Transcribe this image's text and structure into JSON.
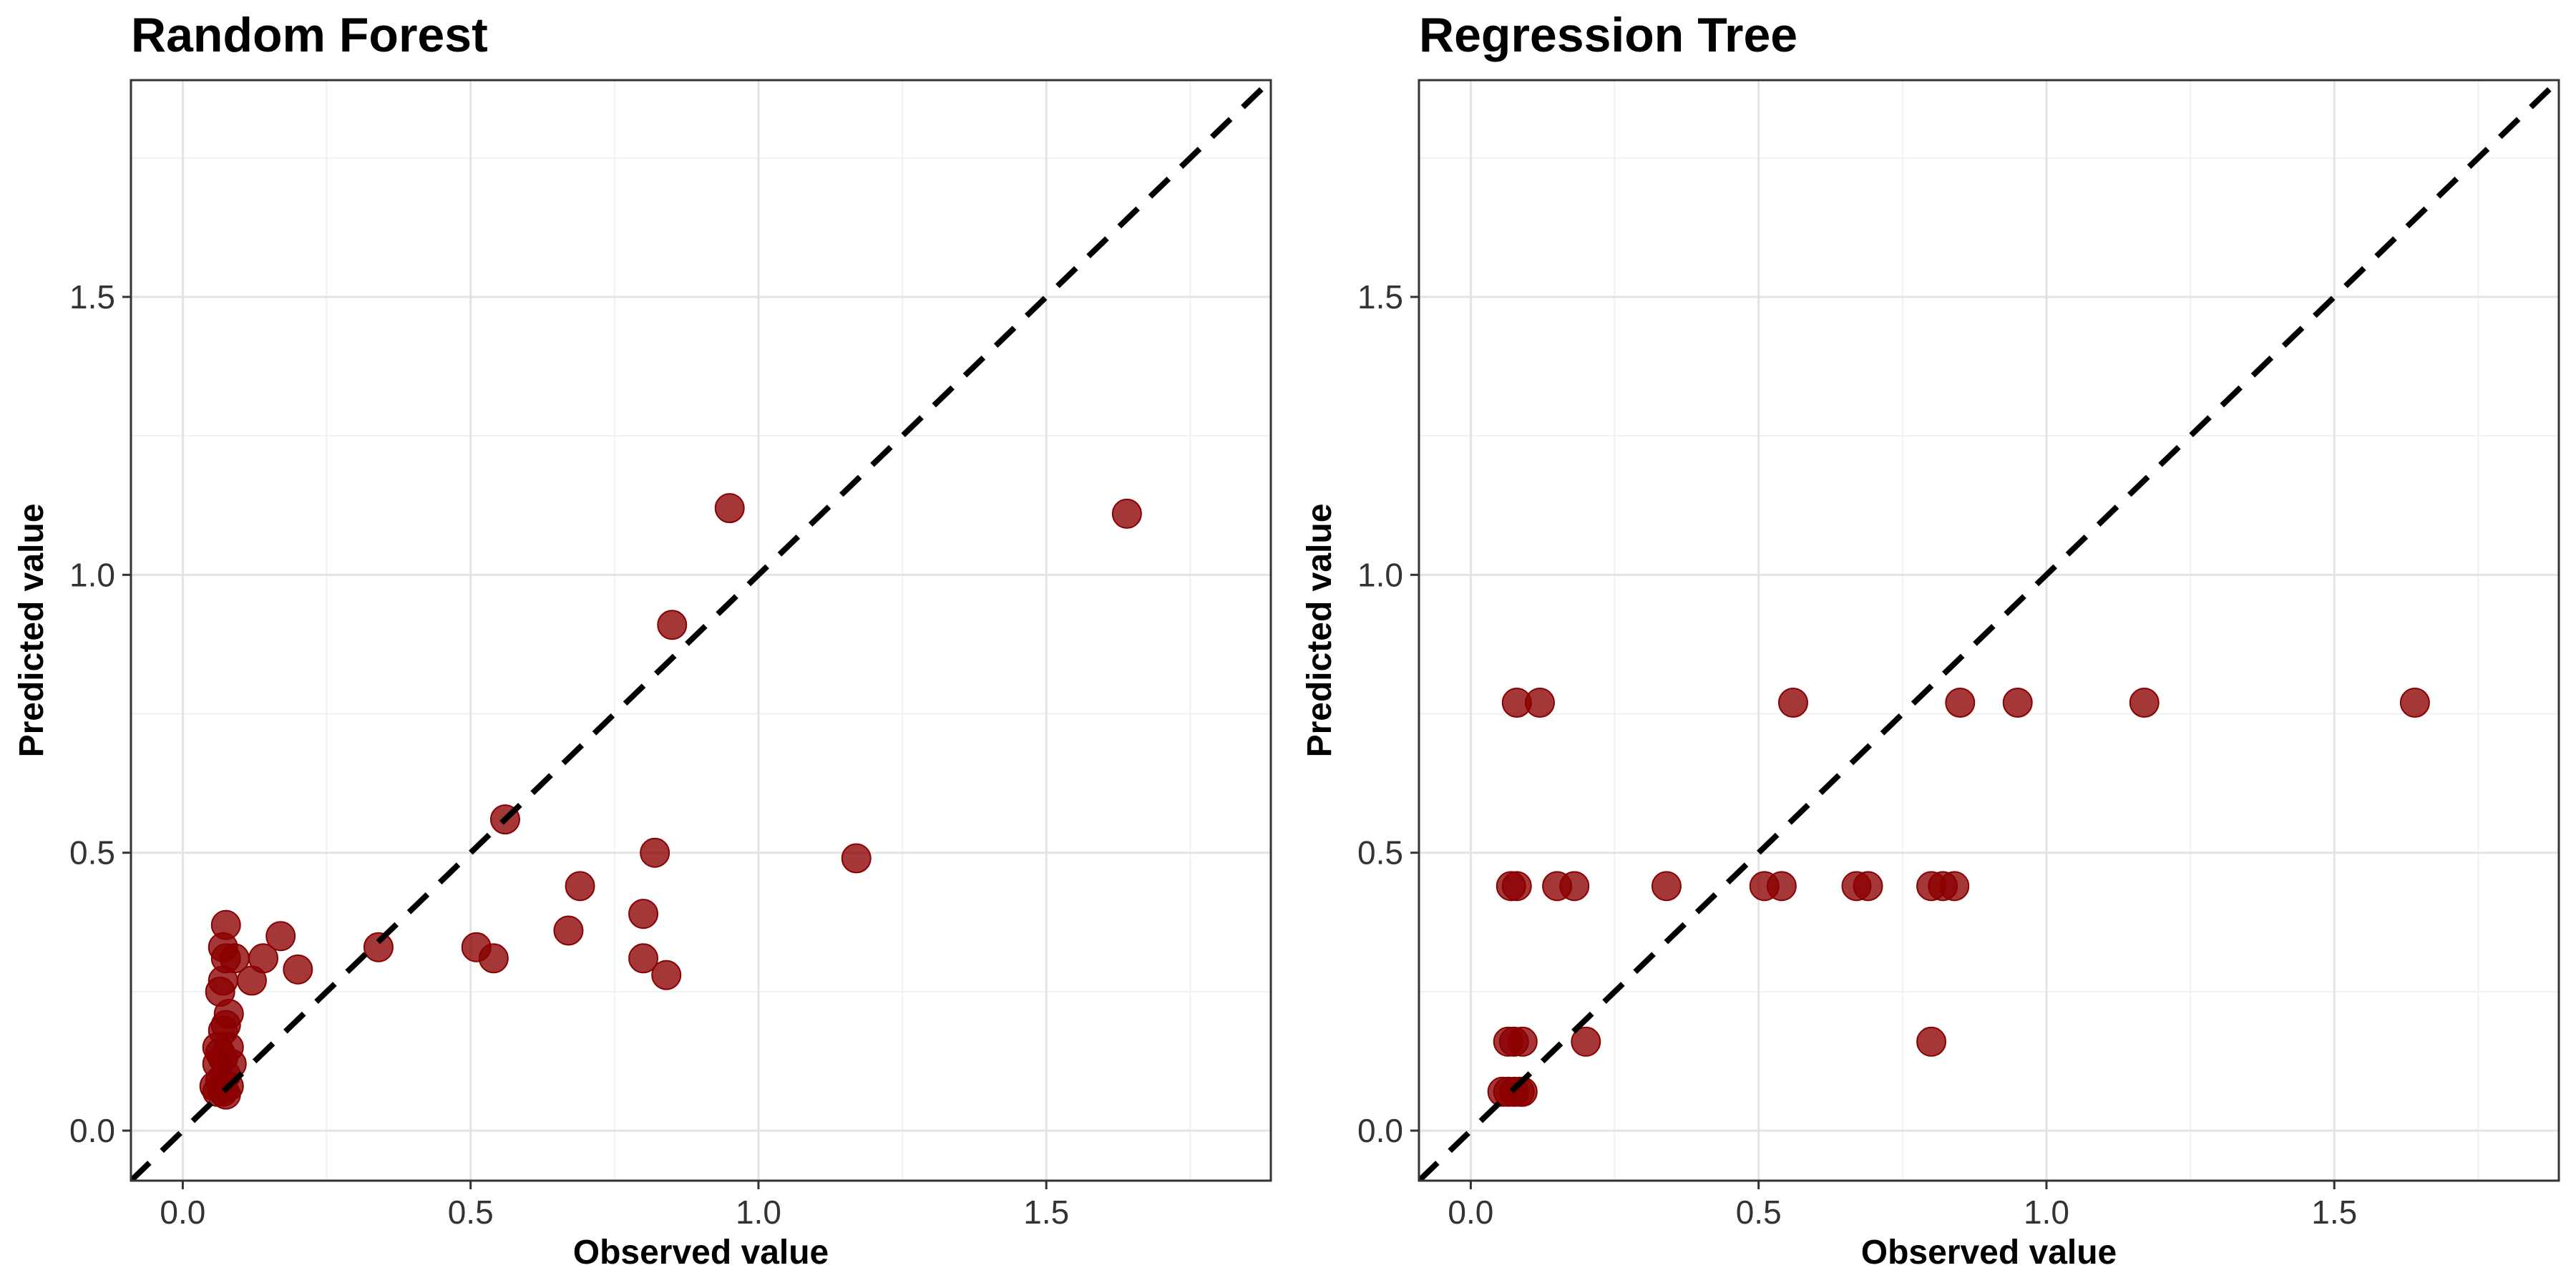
{
  "chart_data": [
    {
      "type": "scatter",
      "title": "Random Forest",
      "xlabel": "Observed value",
      "ylabel": "Predicted value",
      "xlim": [
        -0.09,
        1.89
      ],
      "ylim": [
        -0.09,
        1.89
      ],
      "xticks": [
        0.0,
        0.5,
        1.0,
        1.5
      ],
      "yticks": [
        0.0,
        0.5,
        1.0,
        1.5
      ],
      "xtick_labels": [
        "0.0",
        "0.5",
        "1.0",
        "1.5"
      ],
      "ytick_labels": [
        "0.0",
        "0.5",
        "1.0",
        "1.5"
      ],
      "grid": true,
      "reference_line": "y = x (dashed, black)",
      "point_color": "#8b0000",
      "point_opacity": 0.78,
      "x": [
        1.64,
        0.95,
        0.85,
        1.17,
        0.82,
        0.56,
        0.69,
        0.8,
        0.67,
        0.51,
        0.54,
        0.8,
        0.84,
        0.34,
        0.17,
        0.2,
        0.12,
        0.14,
        0.09,
        0.075,
        0.07,
        0.075,
        0.07,
        0.065,
        0.08,
        0.075,
        0.07,
        0.06,
        0.065,
        0.08,
        0.07,
        0.085,
        0.06,
        0.075,
        0.065,
        0.08,
        0.055,
        0.07,
        0.06,
        0.075
      ],
      "y": [
        1.11,
        1.12,
        0.91,
        0.49,
        0.5,
        0.56,
        0.44,
        0.39,
        0.36,
        0.33,
        0.31,
        0.31,
        0.28,
        0.33,
        0.35,
        0.29,
        0.27,
        0.31,
        0.31,
        0.37,
        0.33,
        0.31,
        0.27,
        0.25,
        0.21,
        0.19,
        0.18,
        0.15,
        0.14,
        0.15,
        0.13,
        0.12,
        0.12,
        0.1,
        0.09,
        0.08,
        0.08,
        0.07,
        0.07,
        0.065
      ]
    },
    {
      "type": "scatter",
      "title": "Regression Tree",
      "xlabel": "Observed value",
      "ylabel": "Predicted value",
      "xlim": [
        -0.09,
        1.89
      ],
      "ylim": [
        -0.09,
        1.89
      ],
      "xticks": [
        0.0,
        0.5,
        1.0,
        1.5
      ],
      "yticks": [
        0.0,
        0.5,
        1.0,
        1.5
      ],
      "xtick_labels": [
        "0.0",
        "0.5",
        "1.0",
        "1.5"
      ],
      "ytick_labels": [
        "0.0",
        "0.5",
        "1.0",
        "1.5"
      ],
      "grid": true,
      "reference_line": "y = x (dashed, black)",
      "point_color": "#8b0000",
      "point_opacity": 0.78,
      "x": [
        0.08,
        0.12,
        0.56,
        0.85,
        0.95,
        1.17,
        1.64,
        0.07,
        0.08,
        0.15,
        0.18,
        0.34,
        0.51,
        0.54,
        0.67,
        0.69,
        0.8,
        0.82,
        0.84,
        0.065,
        0.075,
        0.09,
        0.2,
        0.8,
        0.055,
        0.065,
        0.075,
        0.085,
        0.09
      ],
      "y": [
        0.77,
        0.77,
        0.77,
        0.77,
        0.77,
        0.77,
        0.77,
        0.44,
        0.44,
        0.44,
        0.44,
        0.44,
        0.44,
        0.44,
        0.44,
        0.44,
        0.44,
        0.44,
        0.44,
        0.16,
        0.16,
        0.16,
        0.16,
        0.16,
        0.07,
        0.07,
        0.07,
        0.07,
        0.07
      ]
    }
  ]
}
